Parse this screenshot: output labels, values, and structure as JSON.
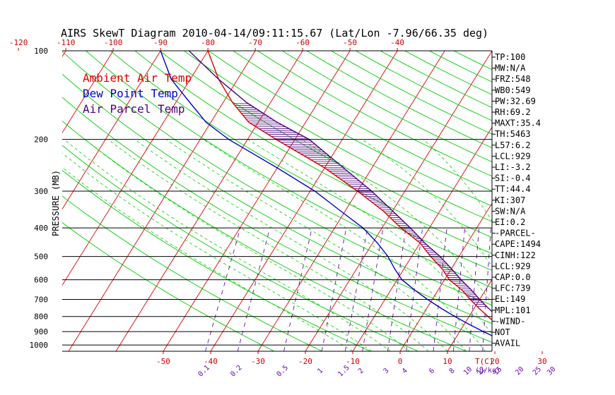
{
  "title": "AIRS SkewT Diagram 2010-04-14/09:11:15.67 (Lat/Lon -7.96/66.35 deg)",
  "chart_data": {
    "type": "skewt",
    "ylabel": "PRESSURE (MB)",
    "pressure_ticks": [
      100,
      200,
      300,
      400,
      500,
      600,
      700,
      800,
      900,
      1000
    ],
    "top_temp_ticks": [
      -120,
      -110,
      -100,
      -90,
      -80,
      -70,
      -60,
      -50,
      -40
    ],
    "bottom_temp_ticks": [
      -50,
      -40,
      -30,
      -20,
      -10,
      0,
      10,
      20,
      30
    ],
    "bottom_temp_label": "T(C)",
    "mixing_ratio_ticks": [
      "0.1",
      "0.2",
      "0.5",
      "1",
      "1.5",
      "2",
      "3",
      "4",
      "6",
      "8",
      "10",
      "12",
      "15",
      "20",
      "25",
      "30"
    ],
    "mixing_ratio_label": "(g/kg)",
    "legend": [
      {
        "name": "Ambient Air Temp",
        "color": "#dd0000"
      },
      {
        "name": "Dew Point Temp",
        "color": "#0000cc"
      },
      {
        "name": "Air Parcel Temp",
        "color": "#4b0082"
      }
    ],
    "series": [
      {
        "name": "Ambient Air Temp",
        "color": "#dd0000",
        "points": [
          [
            1000,
            27
          ],
          [
            950,
            23
          ],
          [
            900,
            20
          ],
          [
            850,
            17
          ],
          [
            800,
            14
          ],
          [
            750,
            11
          ],
          [
            700,
            8
          ],
          [
            650,
            5
          ],
          [
            600,
            1
          ],
          [
            550,
            -2
          ],
          [
            500,
            -6
          ],
          [
            450,
            -10
          ],
          [
            400,
            -16
          ],
          [
            350,
            -22
          ],
          [
            300,
            -30
          ],
          [
            250,
            -40
          ],
          [
            200,
            -54
          ],
          [
            175,
            -62
          ],
          [
            150,
            -68
          ],
          [
            125,
            -74
          ],
          [
            100,
            -80
          ]
        ]
      },
      {
        "name": "Dew Point Temp",
        "color": "#0000cc",
        "points": [
          [
            1000,
            22
          ],
          [
            950,
            19
          ],
          [
            900,
            15
          ],
          [
            850,
            11
          ],
          [
            800,
            7
          ],
          [
            750,
            3
          ],
          [
            700,
            -1
          ],
          [
            650,
            -5
          ],
          [
            600,
            -9
          ],
          [
            550,
            -12
          ],
          [
            500,
            -15
          ],
          [
            450,
            -19
          ],
          [
            400,
            -24
          ],
          [
            350,
            -31
          ],
          [
            300,
            -39
          ],
          [
            250,
            -50
          ],
          [
            200,
            -64
          ],
          [
            175,
            -71
          ],
          [
            150,
            -77
          ],
          [
            125,
            -84
          ],
          [
            100,
            -90
          ]
        ]
      },
      {
        "name": "Air Parcel Temp",
        "color": "#4b0082",
        "points": [
          [
            1000,
            27
          ],
          [
            950,
            24
          ],
          [
            929,
            23
          ],
          [
            900,
            21.5
          ],
          [
            850,
            19
          ],
          [
            800,
            16
          ],
          [
            750,
            13
          ],
          [
            700,
            10
          ],
          [
            650,
            7
          ],
          [
            600,
            3.5
          ],
          [
            550,
            0
          ],
          [
            500,
            -4
          ],
          [
            450,
            -9
          ],
          [
            400,
            -14
          ],
          [
            350,
            -20
          ],
          [
            300,
            -27
          ],
          [
            250,
            -36
          ],
          [
            200,
            -47
          ],
          [
            175,
            -56
          ],
          [
            150,
            -65
          ],
          [
            125,
            -74
          ],
          [
            100,
            -84
          ]
        ]
      }
    ]
  },
  "indices": [
    "TP:100",
    "MW:N/A",
    "FRZ:548",
    "WB0:549",
    "PW:32.69",
    "RH:69.2",
    "MAXT:35.4",
    "TH:5463",
    "L57:6.2",
    "LCL:929",
    "LI:-3.2",
    "SI:-0.4",
    "TT:44.4",
    "KI:307",
    "SW:N/A",
    "EI:0.2",
    "-PARCEL-",
    "CAPE:1494",
    "CINH:122",
    "LCL:929",
    "CAP:0.0",
    "LFC:739",
    "EL:149",
    "MPL:101",
    "-WIND-",
    "NOT",
    "AVAIL"
  ],
  "colors": {
    "grid": "#000000",
    "isotherm": "#dd0000",
    "dry_adiabat": "#00cc00",
    "moist_adiabat": "#00cc00",
    "mixing_ratio": "#6a0dad",
    "cape_hatch": "#4b0082"
  }
}
